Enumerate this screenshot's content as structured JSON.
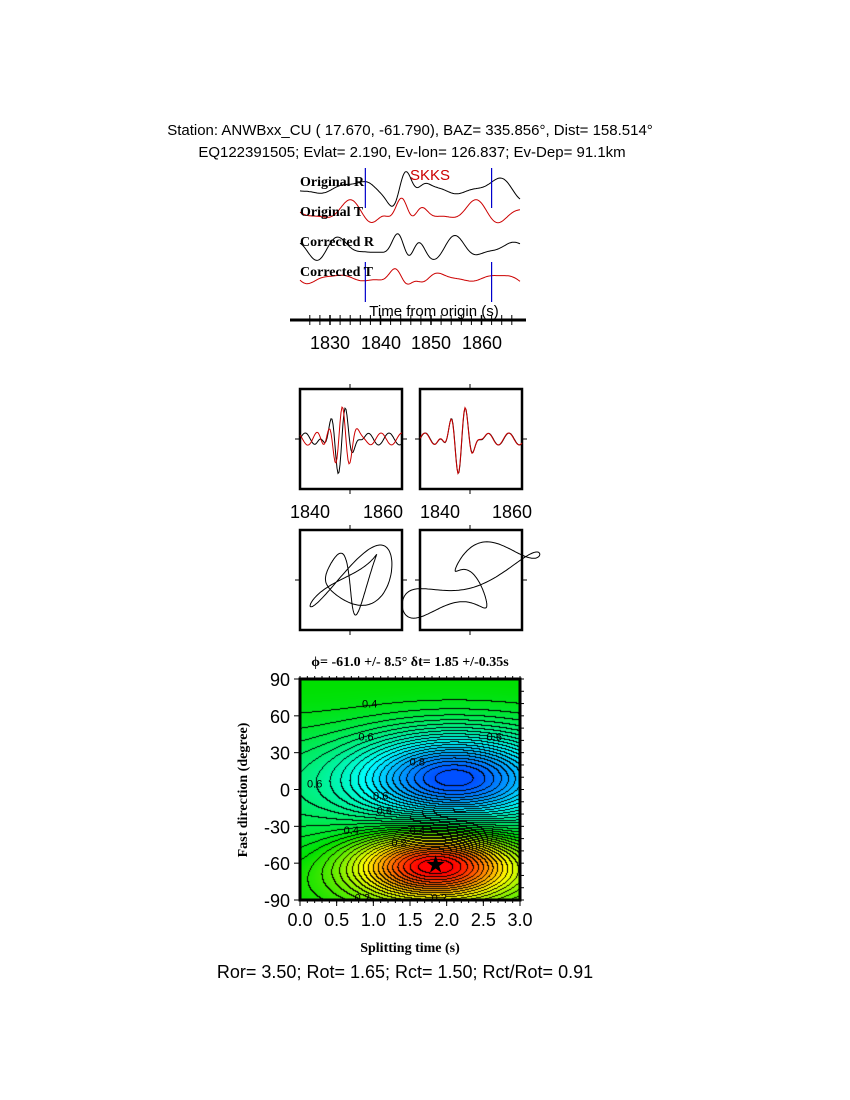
{
  "header": {
    "line1": "Station: ANWBxx_CU (  17.670,  -61.790), BAZ=  335.856°, Dist=  158.514°",
    "line2": "EQ122391505; Evlat=   2.190, Ev-lon= 126.837; Ev-Dep= 91.1km"
  },
  "traces": {
    "labels": [
      "Original R",
      "Original T",
      "Corrected R",
      "Corrected T"
    ],
    "phase": "SKKS",
    "xlabel": "Time from origin (s)",
    "ticks": [
      "1830",
      "1840",
      "1850",
      "1860"
    ],
    "window_start": 1837,
    "window_end": 1862,
    "colors": {
      "radial": "#000000",
      "transverse": "#cc0000",
      "window": "#0000cc"
    }
  },
  "waveform_panels": {
    "ticks": [
      "1840",
      "1860"
    ]
  },
  "bottom_text": "Ror= 3.50; Rot= 1.65; Rct= 1.50; Rct/Rot= 0.91",
  "chart_data": {
    "type": "heatmap",
    "title": "ϕ= -61.0 +/- 8.5° δt= 1.85 +/-0.35s",
    "xlabel": "Splitting time (s)",
    "ylabel": "Fast direction (degree)",
    "xlim": [
      0,
      3
    ],
    "ylim": [
      -90,
      90
    ],
    "xticks": [
      "0.0",
      "0.5",
      "1.0",
      "1.5",
      "2.0",
      "2.5",
      "3.0"
    ],
    "yticks": [
      "90",
      "60",
      "30",
      "0",
      "-30",
      "-60",
      "-90"
    ],
    "contour_labels": [
      "0.4",
      "0.6",
      "0.6",
      "0.8",
      "0.6",
      "0.6",
      "0.6",
      "0.4",
      "0.4",
      "0.2",
      "0.2",
      "0.2"
    ],
    "best_fit": {
      "dt": 1.85,
      "phi": -61.0
    },
    "maximum": {
      "dt": 2.1,
      "phi": 10
    },
    "colorscale": [
      "#ff0000",
      "#ffff00",
      "#00e000",
      "#00ffff",
      "#0050ff"
    ]
  }
}
